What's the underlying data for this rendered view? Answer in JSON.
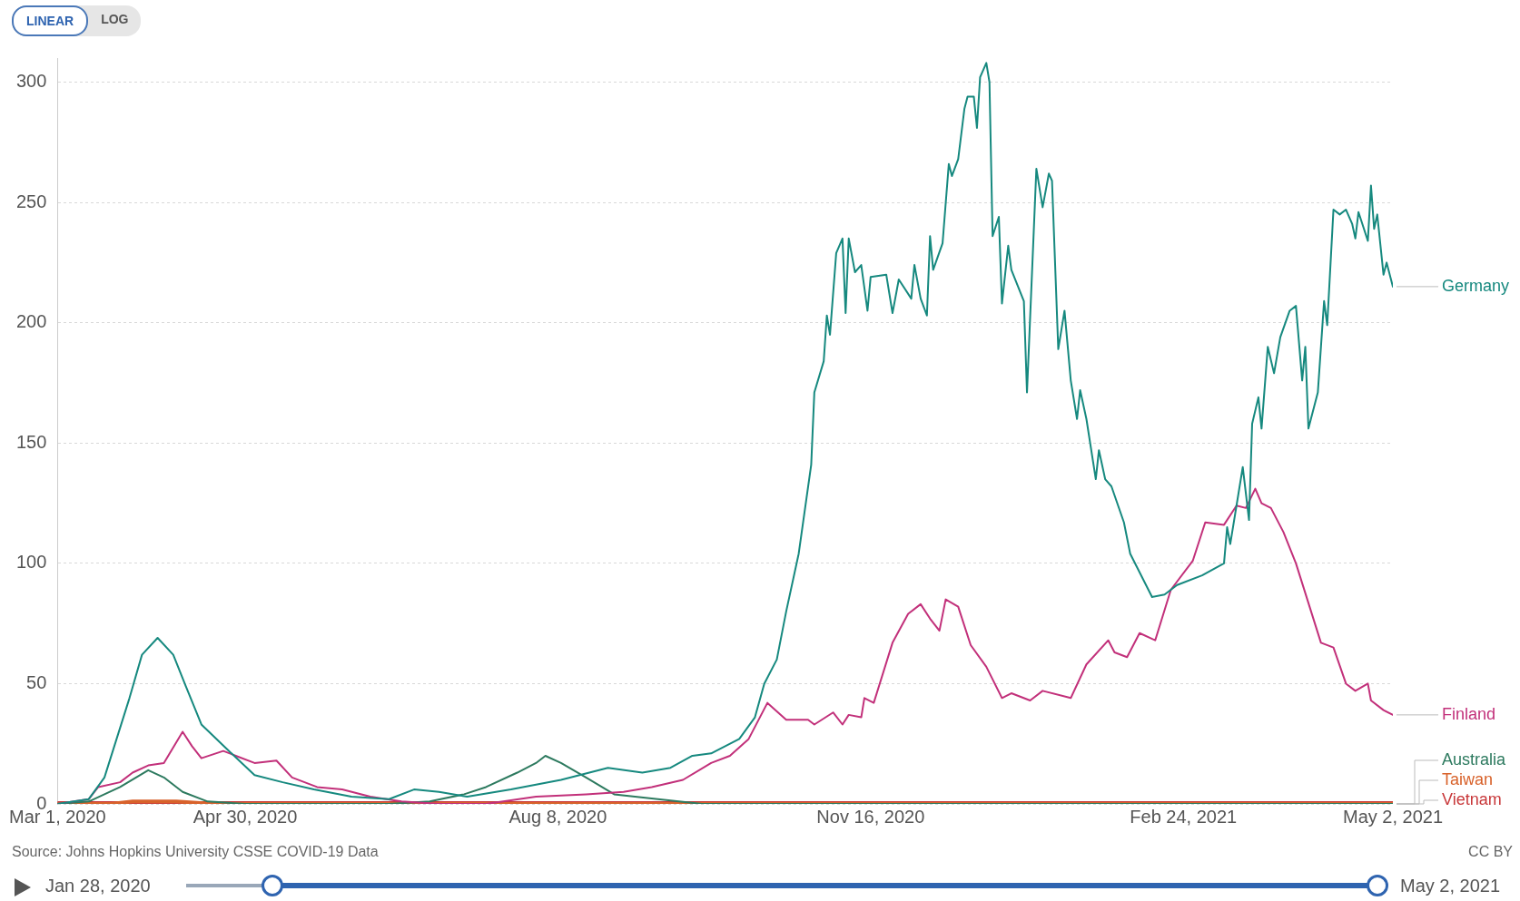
{
  "chart_data": {
    "type": "line",
    "xlim": [
      "2020-03-01",
      "2021-05-02"
    ],
    "xticks": [
      {
        "value": "2020-03-01",
        "label": "Mar 1, 2020"
      },
      {
        "value": "2020-04-30",
        "label": "Apr 30, 2020"
      },
      {
        "value": "2020-08-08",
        "label": "Aug 8, 2020"
      },
      {
        "value": "2020-11-16",
        "label": "Nov 16, 2020"
      },
      {
        "value": "2021-02-24",
        "label": "Feb 24, 2021"
      },
      {
        "value": "2021-05-02",
        "label": "May 2, 2021"
      }
    ],
    "ylim": [
      0,
      310
    ],
    "yticks": [
      0,
      50,
      100,
      150,
      200,
      250,
      300
    ],
    "grid": "y",
    "marker": "none",
    "line_style": "solid",
    "annotations": [
      "Source: Johns Hopkins University CSSE COVID-19 Data",
      "CC BY",
      "LINEAR",
      "LOG",
      "Jan 28, 2020",
      "May 2, 2021"
    ],
    "series": [
      {
        "name": "Germany",
        "color": "#16897f",
        "x": [
          "2020-03-01",
          "2020-03-11",
          "2020-03-16",
          "2020-03-24",
          "2020-03-28",
          "2020-04-02",
          "2020-04-07",
          "2020-04-11",
          "2020-04-16",
          "2020-04-24",
          "2020-05-03",
          "2020-05-12",
          "2020-05-22",
          "2020-06-03",
          "2020-06-15",
          "2020-06-23",
          "2020-07-01",
          "2020-07-10",
          "2020-07-24",
          "2020-08-09",
          "2020-08-24",
          "2020-09-04",
          "2020-09-13",
          "2020-09-20",
          "2020-09-26",
          "2020-10-05",
          "2020-10-10",
          "2020-10-13",
          "2020-10-17",
          "2020-10-20",
          "2020-10-24",
          "2020-10-28",
          "2020-10-29",
          "2020-11-01",
          "2020-11-02",
          "2020-11-03",
          "2020-11-05",
          "2020-11-07",
          "2020-11-08",
          "2020-11-09",
          "2020-11-11",
          "2020-11-13",
          "2020-11-15",
          "2020-11-16",
          "2020-11-21",
          "2020-11-23",
          "2020-11-25",
          "2020-11-29",
          "2020-11-30",
          "2020-12-02",
          "2020-12-04",
          "2020-12-05",
          "2020-12-06",
          "2020-12-09",
          "2020-12-11",
          "2020-12-12",
          "2020-12-14",
          "2020-12-16",
          "2020-12-17",
          "2020-12-19",
          "2020-12-20",
          "2020-12-21",
          "2020-12-23",
          "2020-12-24",
          "2020-12-25",
          "2020-12-27",
          "2020-12-28",
          "2020-12-30",
          "2020-12-31",
          "2021-01-04",
          "2021-01-05",
          "2021-01-08",
          "2021-01-10",
          "2021-01-12",
          "2021-01-13",
          "2021-01-15",
          "2021-01-17",
          "2021-01-19",
          "2021-01-21",
          "2021-01-22",
          "2021-01-24",
          "2021-01-27",
          "2021-01-28",
          "2021-01-30",
          "2021-02-01",
          "2021-02-05",
          "2021-02-07",
          "2021-02-14",
          "2021-02-18",
          "2021-02-22",
          "2021-03-02",
          "2021-03-09",
          "2021-03-10",
          "2021-03-11",
          "2021-03-15",
          "2021-03-17",
          "2021-03-18",
          "2021-03-20",
          "2021-03-21",
          "2021-03-23",
          "2021-03-25",
          "2021-03-27",
          "2021-03-30",
          "2021-04-01",
          "2021-04-03",
          "2021-04-04",
          "2021-04-05",
          "2021-04-08",
          "2021-04-10",
          "2021-04-11",
          "2021-04-13",
          "2021-04-15",
          "2021-04-17",
          "2021-04-19",
          "2021-04-20",
          "2021-04-21",
          "2021-04-24",
          "2021-04-25",
          "2021-04-26",
          "2021-04-27",
          "2021-04-29",
          "2021-04-30",
          "2021-05-02"
        ],
        "values": [
          0,
          2,
          11,
          44,
          62,
          69,
          62,
          49,
          33,
          23,
          12,
          9,
          6,
          3,
          2,
          6,
          5,
          3,
          6,
          10,
          15,
          13,
          15,
          20,
          21,
          27,
          36,
          50,
          60,
          80,
          104,
          141,
          171,
          184,
          203,
          195,
          229,
          235,
          204,
          235,
          221,
          224,
          205,
          219,
          220,
          204,
          218,
          210,
          224,
          210,
          203,
          236,
          222,
          233,
          266,
          261,
          268,
          289,
          294,
          294,
          281,
          302,
          308,
          300,
          236,
          244,
          208,
          232,
          222,
          209,
          171,
          264,
          248,
          262,
          259,
          189,
          205,
          176,
          160,
          172,
          160,
          135,
          147,
          135,
          132,
          117,
          104,
          86,
          87,
          91,
          95,
          100,
          115,
          108,
          140,
          118,
          158,
          169,
          156,
          190,
          179,
          194,
          205,
          207,
          176,
          190,
          156,
          171,
          209,
          199,
          247,
          245,
          247,
          241,
          235,
          246,
          234,
          257,
          239,
          245,
          220,
          225,
          215
        ]
      },
      {
        "name": "Finland",
        "color": "#c2307a",
        "x": [
          "2020-03-01",
          "2020-03-11",
          "2020-03-14",
          "2020-03-21",
          "2020-03-25",
          "2020-03-30",
          "2020-04-04",
          "2020-04-10",
          "2020-04-13",
          "2020-04-16",
          "2020-04-23",
          "2020-04-27",
          "2020-05-03",
          "2020-05-10",
          "2020-05-15",
          "2020-05-23",
          "2020-05-31",
          "2020-06-09",
          "2020-06-19",
          "2020-07-01",
          "2020-07-16",
          "2020-08-01",
          "2020-08-17",
          "2020-08-29",
          "2020-09-07",
          "2020-09-17",
          "2020-09-26",
          "2020-10-02",
          "2020-10-08",
          "2020-10-14",
          "2020-10-20",
          "2020-10-27",
          "2020-10-29",
          "2020-11-04",
          "2020-11-07",
          "2020-11-09",
          "2020-11-13",
          "2020-11-14",
          "2020-11-17",
          "2020-11-23",
          "2020-11-28",
          "2020-12-02",
          "2020-12-05",
          "2020-12-08",
          "2020-12-10",
          "2020-12-14",
          "2020-12-18",
          "2020-12-23",
          "2020-12-28",
          "2020-12-31",
          "2021-01-06",
          "2021-01-10",
          "2021-01-19",
          "2021-01-24",
          "2021-01-31",
          "2021-02-02",
          "2021-02-06",
          "2021-02-10",
          "2021-02-15",
          "2021-02-20",
          "2021-02-27",
          "2021-03-03",
          "2021-03-09",
          "2021-03-13",
          "2021-03-16",
          "2021-03-19",
          "2021-03-21",
          "2021-03-24",
          "2021-03-28",
          "2021-04-01",
          "2021-04-09",
          "2021-04-13",
          "2021-04-17",
          "2021-04-20",
          "2021-04-24",
          "2021-04-25",
          "2021-04-29",
          "2021-05-02"
        ],
        "values": [
          0,
          2,
          7,
          9,
          13,
          16,
          17,
          30,
          24,
          19,
          22,
          20,
          17,
          18,
          11,
          7,
          6,
          3,
          1,
          0,
          0,
          3,
          4,
          5,
          7,
          10,
          17,
          20,
          27,
          42,
          35,
          35,
          33,
          38,
          33,
          37,
          36,
          44,
          42,
          67,
          79,
          83,
          77,
          72,
          85,
          82,
          66,
          57,
          44,
          46,
          43,
          47,
          44,
          58,
          68,
          63,
          61,
          71,
          68,
          89,
          101,
          117,
          116,
          124,
          123,
          131,
          125,
          123,
          113,
          100,
          67,
          65,
          50,
          47,
          50,
          43,
          39,
          37
        ]
      },
      {
        "name": "Australia",
        "color": "#2d7a5f",
        "x": [
          "2020-03-01",
          "2020-03-11",
          "2020-03-21",
          "2020-03-30",
          "2020-04-04",
          "2020-04-10",
          "2020-04-18",
          "2020-04-30",
          "2020-06-15",
          "2020-06-28",
          "2020-07-09",
          "2020-07-16",
          "2020-07-26",
          "2020-08-01",
          "2020-08-04",
          "2020-08-09",
          "2020-08-17",
          "2020-08-26",
          "2020-09-09",
          "2020-09-23",
          "2021-05-02"
        ],
        "values": [
          0,
          1,
          7,
          14,
          11,
          5,
          1,
          0,
          0,
          1,
          4,
          7,
          13,
          17,
          20,
          17,
          11,
          4,
          2,
          0,
          0
        ]
      },
      {
        "name": "Taiwan",
        "color": "#d8622b",
        "x": [
          "2020-03-01",
          "2020-03-18",
          "2020-03-25",
          "2020-04-08",
          "2020-04-20",
          "2021-05-02"
        ],
        "values": [
          0,
          0,
          1,
          1,
          0,
          0
        ]
      },
      {
        "name": "Vietnam",
        "color": "#c8383a",
        "x": [
          "2020-03-01",
          "2021-05-02"
        ],
        "values": [
          0,
          0
        ]
      }
    ]
  }
}
